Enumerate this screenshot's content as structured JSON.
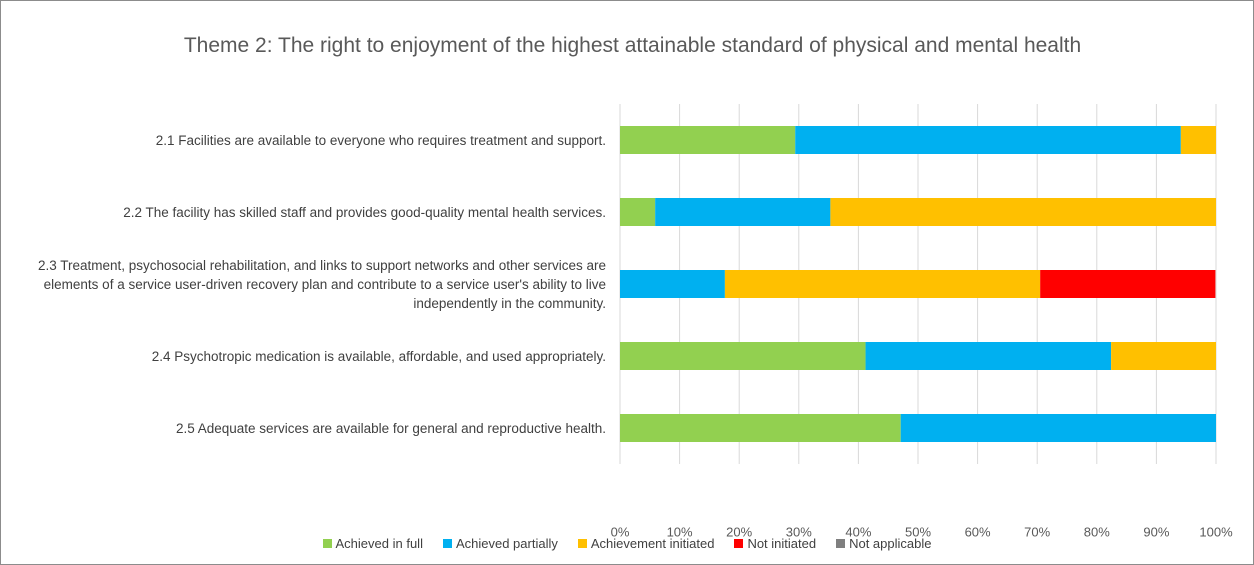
{
  "chart_data": {
    "type": "stacked_bar_horizontal",
    "title": "Theme 2: The right to enjoyment of the highest attainable standard of physical and mental health",
    "categories": [
      "2.1 Facilities are available to everyone who requires treatment and support.",
      "2.2 The facility has skilled staff and provides good-quality mental health services.",
      "2.3 Treatment, psychosocial rehabilitation, and links to support networks and other services are elements of a service user-driven recovery plan and contribute to a service user's ability to live independently in the community.",
      "2.4 Psychotropic medication is available, affordable, and used appropriately.",
      "2.5 Adequate services are available for general and reproductive health."
    ],
    "series": [
      {
        "name": "Achieved in full",
        "color": "#92d050",
        "values": [
          29.4,
          5.9,
          0,
          41.2,
          47.1
        ]
      },
      {
        "name": "Achieved partially",
        "color": "#00b0f0",
        "values": [
          64.7,
          29.4,
          17.6,
          41.2,
          52.9
        ]
      },
      {
        "name": "Achievement initiated",
        "color": "#ffc000",
        "values": [
          5.9,
          64.7,
          52.9,
          17.6,
          0
        ]
      },
      {
        "name": "Not initiated",
        "color": "#ff0000",
        "values": [
          0,
          0,
          29.4,
          0,
          0
        ]
      },
      {
        "name": "Not applicable",
        "color": "#7f7f7f",
        "values": [
          0,
          0,
          0,
          0,
          0
        ]
      }
    ],
    "xlim": [
      0,
      100
    ],
    "xticks": [
      {
        "value": 0,
        "label": "0%"
      },
      {
        "value": 10,
        "label": "10%"
      },
      {
        "value": 20,
        "label": "20%"
      },
      {
        "value": 30,
        "label": "30%"
      },
      {
        "value": 40,
        "label": "40%"
      },
      {
        "value": 50,
        "label": "50%"
      },
      {
        "value": 60,
        "label": "60%"
      },
      {
        "value": 70,
        "label": "70%"
      },
      {
        "value": 80,
        "label": "80%"
      },
      {
        "value": 90,
        "label": "90%"
      },
      {
        "value": 100,
        "label": "100%"
      }
    ],
    "grid": true,
    "legend": "bottom"
  }
}
